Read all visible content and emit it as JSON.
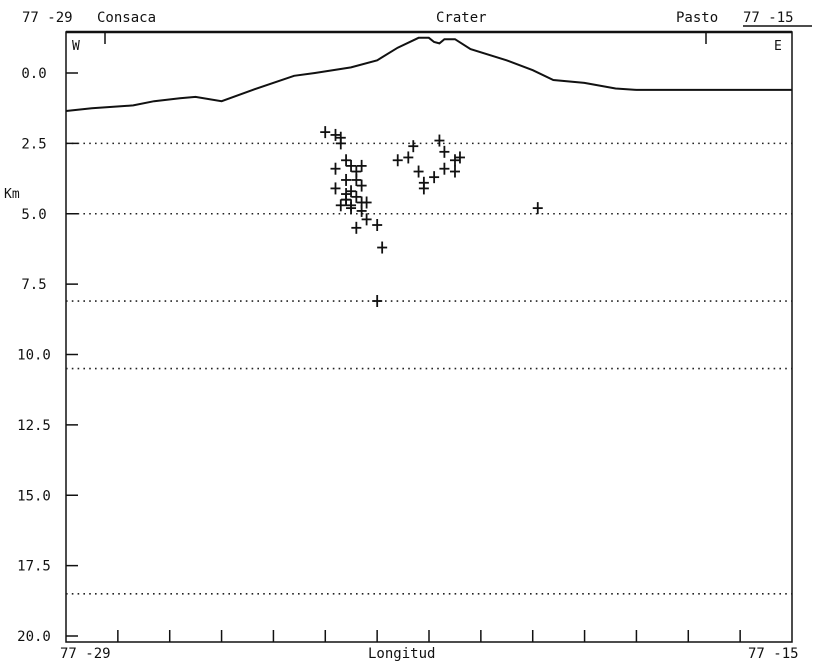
{
  "chart_data": {
    "type": "scatter",
    "ylabel": "Km",
    "xlabel": "Longitud",
    "top_left_label": "77 -29",
    "top_right_label": "77 -15",
    "bottom_left_label": "77 -29",
    "bottom_right_label": "77 -15",
    "place_labels": [
      "Consaca",
      "Crater",
      "Pasto"
    ],
    "corner_left": "W",
    "corner_right": "E",
    "ylim": [
      0.0,
      20.0
    ],
    "xlim": [
      -77.4833,
      -77.25
    ],
    "y_ticks": [
      "0.0",
      "2.5",
      "5.0",
      "7.5",
      "10.0",
      "12.5",
      "15.0",
      "17.5",
      "20.0"
    ],
    "y_inverted": true,
    "dotted_depths": [
      2.5,
      5.0,
      8.1,
      10.5,
      18.5
    ],
    "topography": {
      "x": [
        -77.4833,
        -77.475,
        -77.4617,
        -77.455,
        -77.4467,
        -77.4417,
        -77.4333,
        -77.4233,
        -77.41,
        -77.4033,
        -77.3917,
        -77.3833,
        -77.3767,
        -77.37,
        -77.3667,
        -77.365,
        -77.3633,
        -77.3617,
        -77.3583,
        -77.3533,
        -77.3417,
        -77.3333,
        -77.3267,
        -77.3167,
        -77.3067,
        -77.3,
        -77.25
      ],
      "y": [
        1.35,
        1.25,
        1.15,
        1.0,
        0.9,
        0.85,
        1.0,
        0.6,
        0.1,
        0.0,
        -0.2,
        -0.45,
        -0.9,
        -1.25,
        -1.25,
        -1.1,
        -1.05,
        -1.2,
        -1.2,
        -0.85,
        -0.45,
        -0.1,
        0.25,
        0.35,
        0.55,
        0.6,
        0.6
      ]
    },
    "hypocenters": {
      "x": [
        -77.4,
        -77.395,
        -77.3967,
        -77.395,
        -77.3917,
        -77.3967,
        -77.3933,
        -77.3933,
        -77.39,
        -77.3917,
        -77.3883,
        -77.3933,
        -77.3917,
        -77.3967,
        -77.3883,
        -77.39,
        -77.3917,
        -77.3867,
        -77.3933,
        -77.395,
        -77.3933,
        -77.39,
        -77.3883,
        -77.3867,
        -77.3833,
        -77.39,
        -77.3817,
        -77.3883,
        -77.3767,
        -77.3733,
        -77.3717,
        -77.37,
        -77.3633,
        -77.3617,
        -77.3583,
        -77.365,
        -77.3683,
        -77.3683,
        -77.3617,
        -77.3583,
        -77.3567,
        -77.3317,
        -77.3833
      ],
      "y": [
        2.1,
        2.3,
        2.2,
        2.5,
        3.3,
        3.4,
        3.1,
        3.8,
        3.5,
        4.2,
        4.0,
        4.5,
        4.8,
        4.1,
        3.3,
        3.8,
        4.7,
        4.6,
        4.5,
        4.7,
        4.3,
        4.4,
        4.9,
        5.2,
        5.4,
        5.5,
        6.2,
        4.6,
        3.1,
        3.0,
        2.6,
        3.5,
        2.4,
        2.8,
        3.1,
        3.7,
        4.1,
        3.9,
        3.4,
        3.5,
        3.0,
        4.8,
        8.1
      ]
    }
  }
}
